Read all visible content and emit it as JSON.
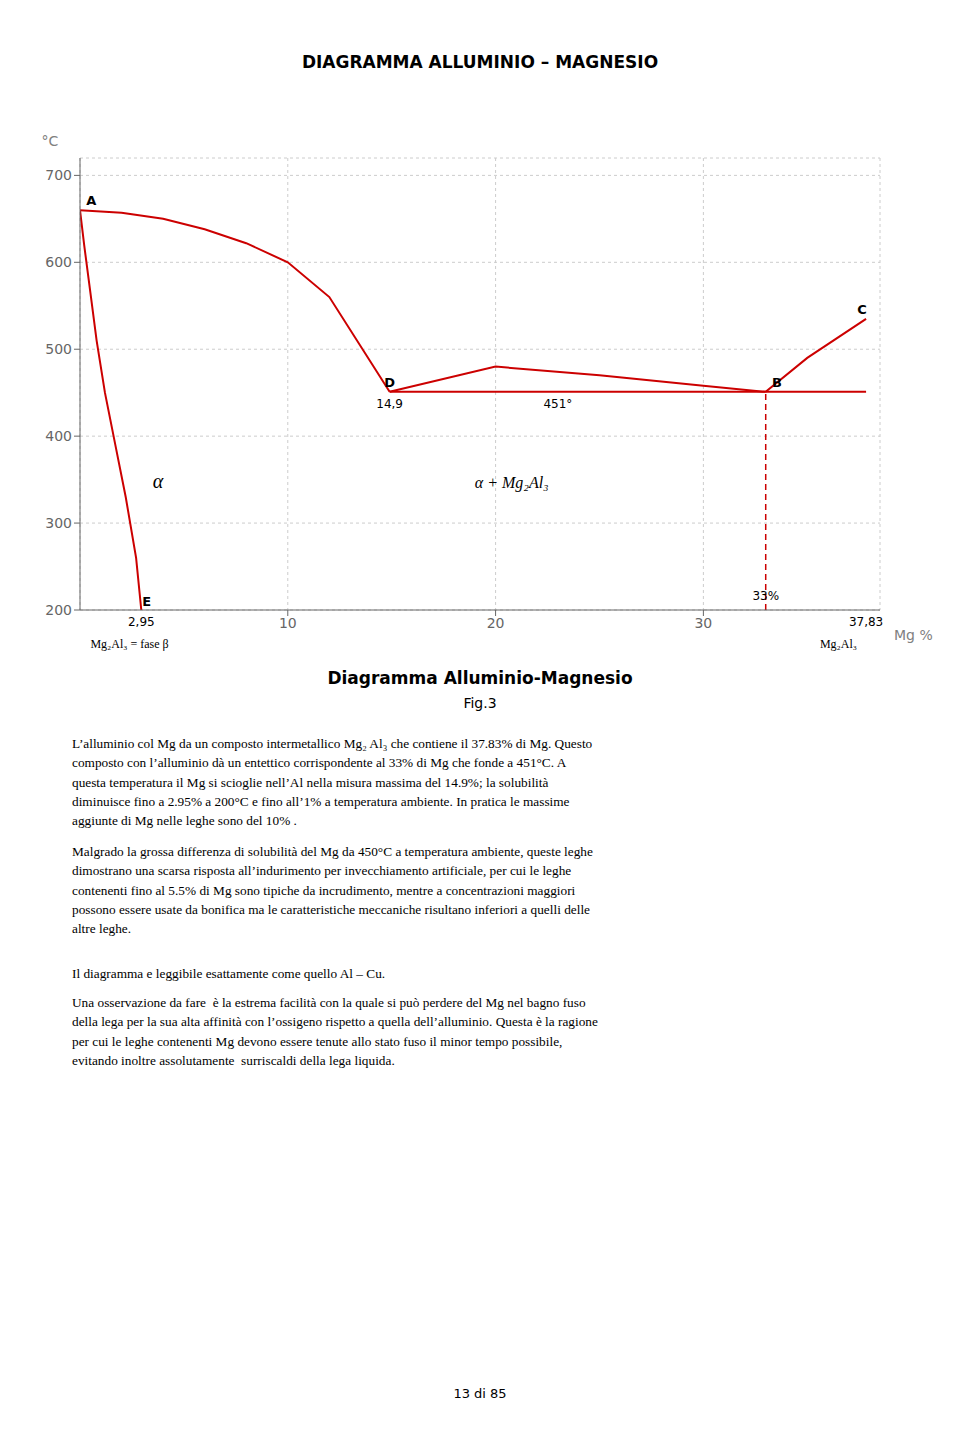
{
  "page": {
    "title": "DIAGRAMMA ALLUMINIO – MAGNESIO",
    "paragraphs": [
      "L’alluminio col Mg da un composto intermetallico Mg₂ Al₃ che contiene il 37.83% di Mg. Questo\ncomposto con l’alluminio dà un entettico corrispondente al 33% di Mg che fonde a 451°C. A\nquesta temperatura il Mg si scioglie nell’Al nella misura massima del 14.9%; la solubilità\ndiminuisce fino a 2.95% a 200°C e fino all’1% a temperatura ambiente. In pratica le massime\naggiunte di Mg nelle leghe sono del 10% .",
      "Malgrado la grossa differenza di solubilità del Mg da 450°C a temperatura ambiente, queste leghe\ndimostrano una scarsa risposta all’indurimento per invecchiamento artificiale, per cui le leghe\ncontenenti fino al 5.5% di Mg sono tipiche da incrudimento, mentre a concentrazioni maggiori\npossono essere usate da bonifica ma le caratteristiche meccaniche risultano inferiori a quelli delle\naltre leghe.",
      "Il diagramma e leggibile esattamente come quello Al – Cu.",
      "Una osservazione da fare  è la estrema facilità con la quale si può perdere del Mg nel bagno fuso\ndella lega per la sua alta affinità con l’ossigeno rispetto a quella dell’alluminio. Questa è la ragione\nper cui le leghe contenenti Mg devono essere tenute allo stato fuso il minor tempo possibile,\nevitando inoltre assolutamente  surriscaldi della lega liquida."
    ],
    "page_number": "13 di 85"
  },
  "chart_data": {
    "type": "line",
    "title": "Diagramma Alluminio-Magnesio",
    "subtitle": "Fig.3",
    "x_label": "Mg %",
    "y_label": "°C",
    "xlim": [
      0,
      38.5
    ],
    "ylim": [
      200,
      720
    ],
    "xticks": [
      10,
      20,
      30
    ],
    "yticks": [
      200,
      300,
      400,
      500,
      600,
      700
    ],
    "grid": true,
    "series": [
      {
        "color": "#cc0000",
        "line_style": "solid",
        "x": [
          0,
          2,
          4,
          6,
          8,
          10,
          12,
          14.9
        ],
        "values": [
          660,
          657,
          650,
          638,
          622,
          600,
          560,
          451
        ]
      },
      {
        "color": "#cc0000",
        "line_style": "solid",
        "x": [
          14.9,
          20,
          25,
          30,
          33.0
        ],
        "values": [
          451,
          480,
          470,
          458,
          451
        ]
      },
      {
        "color": "#cc0000",
        "line_style": "solid",
        "x": [
          33.0,
          35,
          37.83
        ],
        "values": [
          451,
          490,
          535
        ]
      },
      {
        "color": "#cc0000",
        "line_style": "solid",
        "x": [
          0,
          0.2,
          0.5,
          0.8,
          1.2,
          1.7,
          2.2,
          2.7,
          2.95
        ],
        "values": [
          660,
          620,
          565,
          510,
          450,
          390,
          330,
          260,
          200
        ]
      },
      {
        "color": "#cc0000",
        "line_style": "solid",
        "x": [
          14.9,
          37.83
        ],
        "values": [
          451,
          451
        ]
      },
      {
        "color": "#cc0000",
        "line_style": "dashed",
        "x": [
          33.0,
          33.0
        ],
        "values": [
          200,
          451
        ]
      }
    ],
    "annotations": [
      {
        "text": "A",
        "x": 0.3,
        "y": 662
      },
      {
        "text": "D",
        "x": 14.9,
        "y": 453
      },
      {
        "text": "B",
        "x": 33.3,
        "y": 453
      },
      {
        "text": "C",
        "x": 37.4,
        "y": 537
      },
      {
        "text": "E",
        "x": 3.0,
        "y": 201
      },
      {
        "text": "14,9",
        "x": 14.9,
        "y": 442
      },
      {
        "text": "451°",
        "x": 23,
        "y": 442
      },
      {
        "text": "33%",
        "x": 33.0,
        "y": 208
      },
      {
        "text": "α",
        "x": 3.5,
        "y": 340
      },
      {
        "text": "α + Mg₂Al₃",
        "x": 19,
        "y": 340
      },
      {
        "text": "2,95",
        "x": 2.95,
        "y": 194
      },
      {
        "text": "37,83",
        "x": 37.83,
        "y": 194
      },
      {
        "text": "Mg₂Al₃ = fase β",
        "x": 0.5,
        "y": 182
      },
      {
        "text": "Mg₂Al₃",
        "x": 36.5,
        "y": 182
      }
    ]
  }
}
